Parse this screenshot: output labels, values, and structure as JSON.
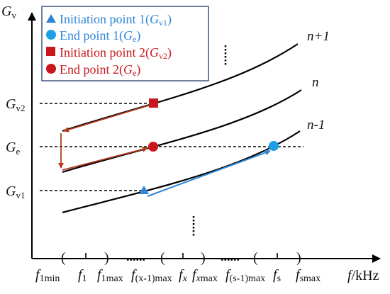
{
  "axes": {
    "y_label_main": "G",
    "y_label_sub": "v",
    "x_label_main": "f",
    "x_label_unit": "/kHz"
  },
  "y_ticks": [
    {
      "main": "G",
      "sub": "v2"
    },
    {
      "main": "G",
      "sub": "e"
    },
    {
      "main": "G",
      "sub": "v1"
    }
  ],
  "x_ticks": [
    {
      "main": "f",
      "sub": "1min"
    },
    {
      "main": "f",
      "sub": "1"
    },
    {
      "main": "f",
      "sub": "1max"
    },
    {
      "main": "f",
      "sub": "(x-1)max"
    },
    {
      "main": "f",
      "sub": "x",
      "sub_italic": true
    },
    {
      "main": "f",
      "sub": "x",
      "sub_italic": true,
      "sub_tail": "max"
    },
    {
      "main": "f",
      "sub": "(s-1)max"
    },
    {
      "main": "f",
      "sub": "s"
    },
    {
      "main": "f",
      "sub": "smax"
    }
  ],
  "paren_marks": [
    "(",
    ")",
    "(",
    ")",
    "(",
    ")",
    "(",
    ")"
  ],
  "ellipsis": "......",
  "curves": [
    {
      "label": "n+1"
    },
    {
      "label": "n"
    },
    {
      "label": "n-1"
    }
  ],
  "legend": {
    "items": [
      {
        "text": "Initiation point 1(",
        "var_main": "G",
        "var_sub": "v1",
        "close": ")",
        "marker": "triangle",
        "color": "#2f86d8"
      },
      {
        "text": "End point 1(",
        "var_main": "G",
        "var_sub": "e",
        "close": ")",
        "marker": "circle",
        "color": "#2f86d8"
      },
      {
        "text": "Initiation point 2(",
        "var_main": "G",
        "var_sub": "v2",
        "close": ")",
        "marker": "square",
        "color": "#c8181e"
      },
      {
        "text": "End point 2(",
        "var_main": "G",
        "var_sub": "e",
        "close": ")",
        "marker": "circle",
        "color": "#c8181e"
      }
    ]
  },
  "colors": {
    "blue": "#2f86d8",
    "red": "#c8181e",
    "dark_red": "#b23a1e",
    "axis": "#000000"
  }
}
